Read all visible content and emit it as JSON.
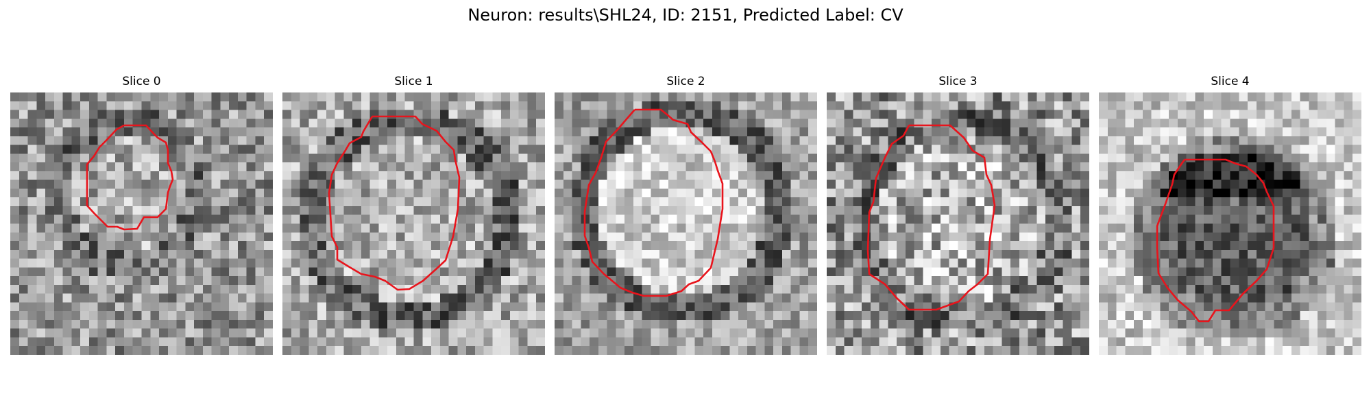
{
  "figure": {
    "title": "Neuron: results\\SHL24, ID: 2151, Predicted Label: CV"
  },
  "panels": [
    {
      "title": "Slice 0"
    },
    {
      "title": "Slice 1"
    },
    {
      "title": "Slice 2"
    },
    {
      "title": "Slice 3"
    },
    {
      "title": "Slice 4"
    }
  ],
  "colors": {
    "contour": "#e8141c",
    "colormap": "gray"
  }
}
